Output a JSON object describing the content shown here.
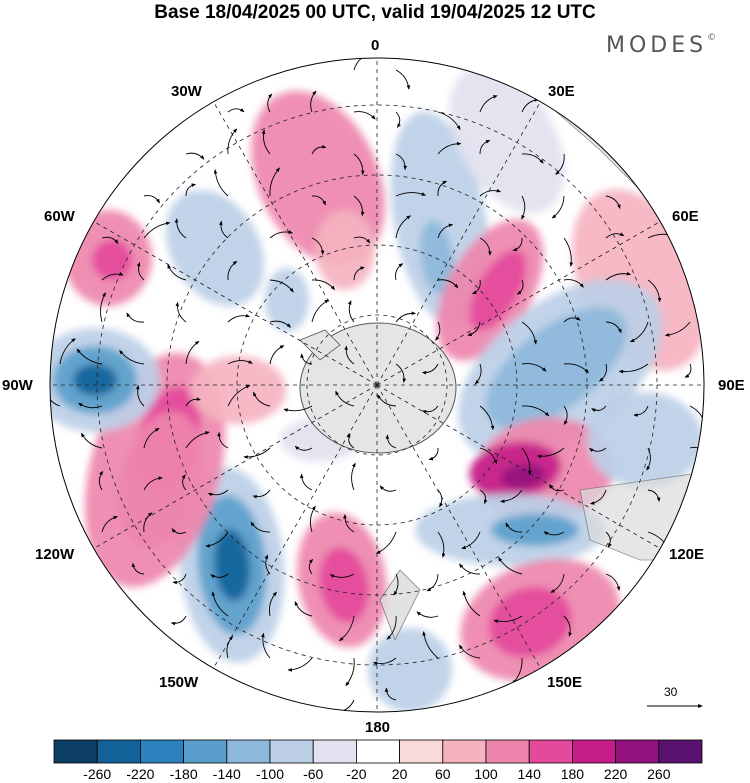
{
  "title": "Base 18/04/2025 00 UTC, valid 19/04/2025 12 UTC",
  "brand": "MODES",
  "brand_mark": "©",
  "map": {
    "projection": "south-polar-stereographic",
    "longitude_labels": {
      "n": "0",
      "nne": "30E",
      "ene": "60E",
      "e": "90E",
      "ese": "120E",
      "sse": "150E",
      "s": "180",
      "ssw": "150W",
      "wsw": "120W",
      "w": "90W",
      "wnw": "60W",
      "nnw": "30W"
    },
    "vector_scale_label": "30"
  },
  "colorbar": {
    "colors": [
      "#0c3f63",
      "#13629a",
      "#2b82bd",
      "#5a9fcc",
      "#8db8db",
      "#bccfe7",
      "#e2e2f0",
      "#ffffff",
      "#fad9dc",
      "#f5b3c0",
      "#ee85ad",
      "#e4499b",
      "#c61e88",
      "#93117d",
      "#5a1270"
    ],
    "ticks": [
      "-260",
      "-220",
      "-180",
      "-140",
      "-100",
      "-60",
      "-20",
      "20",
      "60",
      "100",
      "140",
      "180",
      "220",
      "260"
    ]
  }
}
